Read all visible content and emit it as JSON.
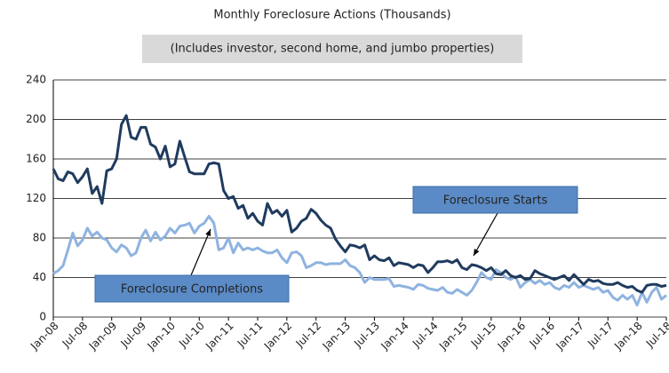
{
  "chart_data": {
    "type": "line",
    "title": "Monthly Foreclosure Actions (Thousands)",
    "subtitle": "(Includes investor, second home, and jumbo properties)",
    "categories": [
      "Jan-08",
      null,
      null,
      null,
      null,
      null,
      "Jul-08",
      null,
      null,
      null,
      null,
      null,
      "Jan-09",
      null,
      null,
      null,
      null,
      null,
      "Jul-09",
      null,
      null,
      null,
      null,
      null,
      "Jan-10",
      null,
      null,
      null,
      null,
      null,
      "Jul-10",
      null,
      null,
      null,
      null,
      null,
      "Jan-11",
      null,
      null,
      null,
      null,
      null,
      "Jul-11",
      null,
      null,
      null,
      null,
      null,
      "Jan-12",
      null,
      null,
      null,
      null,
      null,
      "Jul-12",
      null,
      null,
      null,
      null,
      null,
      "Jan-13",
      null,
      null,
      null,
      null,
      null,
      "Jul-13",
      null,
      null,
      null,
      null,
      null,
      "Jan-14",
      null,
      null,
      null,
      null,
      null,
      "Jul-14",
      null,
      null,
      null,
      null,
      null,
      "Jan-15",
      null,
      null,
      null,
      null,
      null,
      "Jul-15",
      null,
      null,
      null,
      null,
      null,
      "Jan-16",
      null,
      null,
      null,
      null,
      null,
      "Jul-16",
      null,
      null,
      null,
      null,
      null,
      "Jan-17",
      null,
      null,
      null,
      null,
      null,
      "Jul-17",
      null,
      null,
      null,
      null,
      null,
      "Jan-18",
      null,
      null,
      null,
      null,
      null,
      "Jul-18"
    ],
    "series": [
      {
        "name": "Foreclosure Starts",
        "color": "#1f3b5e",
        "values": [
          150,
          140,
          138,
          147,
          145,
          136,
          142,
          150,
          125,
          132,
          115,
          148,
          150,
          160,
          195,
          204,
          182,
          180,
          192,
          192,
          175,
          172,
          160,
          173,
          152,
          155,
          178,
          162,
          147,
          145,
          145,
          145,
          155,
          156,
          155,
          128,
          120,
          122,
          110,
          113,
          100,
          105,
          97,
          93,
          115,
          105,
          108,
          102,
          108,
          86,
          90,
          97,
          100,
          109,
          105,
          98,
          93,
          90,
          79,
          72,
          66,
          73,
          72,
          70,
          73,
          58,
          62,
          58,
          57,
          60,
          52,
          55,
          54,
          53,
          50,
          53,
          52,
          45,
          50,
          56,
          56,
          57,
          55,
          58,
          50,
          48,
          53,
          52,
          50,
          47,
          50,
          44,
          43,
          47,
          42,
          40,
          42,
          38,
          39,
          47,
          44,
          42,
          40,
          38,
          40,
          42,
          37,
          43,
          38,
          33,
          38,
          36,
          37,
          34,
          33,
          33,
          35,
          32,
          30,
          31,
          27,
          25,
          32,
          33,
          33,
          31,
          32
        ]
      },
      {
        "name": "Foreclosure Completions",
        "color": "#8fb3e0",
        "values": [
          44,
          47,
          52,
          68,
          85,
          72,
          78,
          90,
          82,
          86,
          80,
          78,
          70,
          66,
          73,
          70,
          62,
          65,
          80,
          88,
          77,
          86,
          78,
          82,
          90,
          85,
          92,
          93,
          95,
          85,
          92,
          95,
          102,
          95,
          68,
          70,
          80,
          65,
          75,
          68,
          70,
          68,
          70,
          67,
          65,
          65,
          68,
          60,
          55,
          65,
          66,
          62,
          50,
          52,
          55,
          55,
          53,
          54,
          54,
          54,
          58,
          52,
          50,
          45,
          35,
          40,
          38,
          38,
          38,
          39,
          31,
          32,
          31,
          30,
          28,
          33,
          32,
          29,
          28,
          27,
          30,
          25,
          24,
          28,
          25,
          22,
          27,
          35,
          45,
          40,
          38,
          48,
          45,
          40,
          38,
          41,
          30,
          35,
          38,
          34,
          37,
          33,
          35,
          30,
          28,
          32,
          30,
          35,
          30,
          32,
          30,
          28,
          30,
          25,
          27,
          20,
          17,
          22,
          18,
          22,
          12,
          25,
          15,
          25,
          30,
          18,
          22
        ]
      }
    ],
    "ylim": [
      0,
      240
    ],
    "yticks": [
      0,
      40,
      80,
      120,
      160,
      200,
      240
    ],
    "grid": true
  }
}
